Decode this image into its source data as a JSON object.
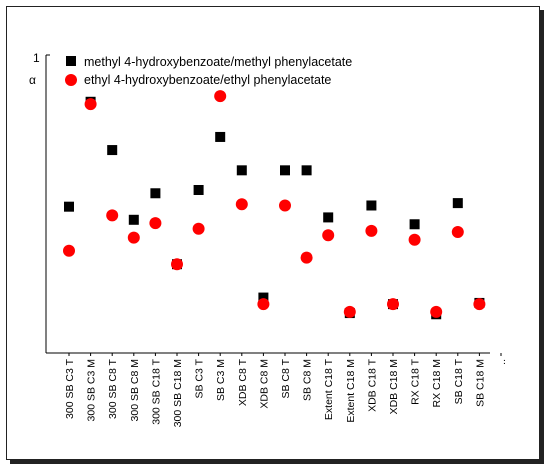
{
  "chart_data": {
    "type": "scatter",
    "title": "",
    "ylabel": "α",
    "ytick_labels": [
      "1"
    ],
    "xtick_extra": "..",
    "ylim": [
      0,
      1
    ],
    "categories": [
      "300 SB C3 T",
      "300 SB C3 M",
      "300 SB C8 T",
      "300 SB C8 M",
      "300 SB C18 T",
      "300 SB C18 M",
      "SB C3 T",
      "SB C3 M",
      "XDB C8 T",
      "XDB C8 M",
      "SB C8 T",
      "SB C8 M",
      "Extent C18 T",
      "Extent C18 M",
      "XDB C18 T",
      "XDB C18 M",
      "RX C18 T",
      "RX C18 M",
      "SB C18 T",
      "SB C18 M"
    ],
    "series": [
      {
        "name": "methyl 4-hydroxybenzoate/methyl phenylacetate",
        "marker": "square",
        "color": "#000000",
        "values": [
          0.491,
          0.843,
          0.681,
          0.447,
          0.536,
          0.298,
          0.547,
          0.725,
          0.613,
          0.186,
          0.613,
          0.613,
          0.455,
          0.134,
          0.495,
          0.164,
          0.432,
          0.13,
          0.503,
          0.168
        ]
      },
      {
        "name": "ethyl 4-hydroxybenzoate/ethyl phenylacetate",
        "marker": "circle",
        "color": "#ff0000",
        "values": [
          0.343,
          0.835,
          0.462,
          0.387,
          0.436,
          0.298,
          0.417,
          0.862,
          0.499,
          0.164,
          0.495,
          0.32,
          0.395,
          0.138,
          0.41,
          0.164,
          0.38,
          0.138,
          0.406,
          0.164
        ]
      }
    ]
  },
  "colors": {
    "square": "#000000",
    "circle": "#ff0000"
  }
}
